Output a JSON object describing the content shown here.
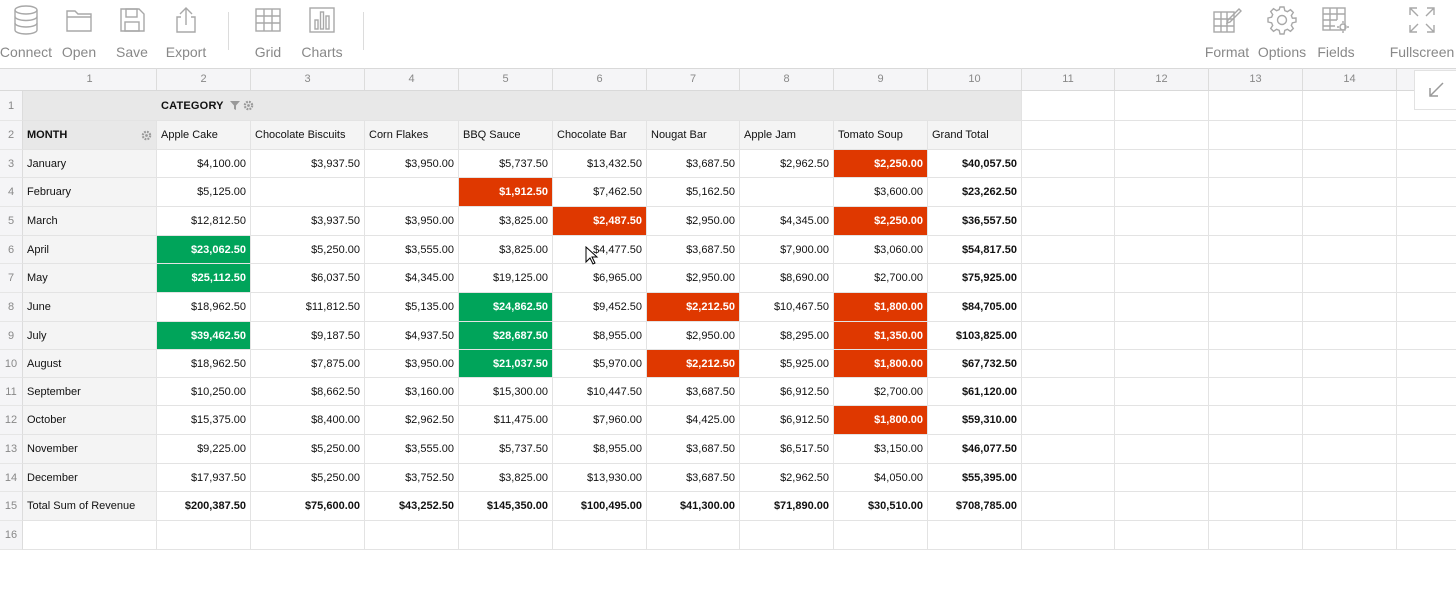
{
  "toolbar": {
    "left": [
      {
        "id": "connect",
        "label": "Connect",
        "icon": "database-icon"
      },
      {
        "id": "open",
        "label": "Open",
        "icon": "folder-icon"
      },
      {
        "id": "save",
        "label": "Save",
        "icon": "save-icon"
      },
      {
        "id": "export",
        "label": "Export",
        "icon": "export-icon"
      },
      {
        "id": "grid",
        "label": "Grid",
        "icon": "grid-icon"
      },
      {
        "id": "charts",
        "label": "Charts",
        "icon": "charts-icon"
      }
    ],
    "right": [
      {
        "id": "format",
        "label": "Format",
        "icon": "format-icon"
      },
      {
        "id": "options",
        "label": "Options",
        "icon": "gear-icon"
      },
      {
        "id": "fields",
        "label": "Fields",
        "icon": "fields-icon"
      },
      {
        "id": "fullscreen",
        "label": "Fullscreen",
        "icon": "fullscreen-icon"
      }
    ]
  },
  "column_numbers": [
    "1",
    "2",
    "3",
    "4",
    "5",
    "6",
    "7",
    "8",
    "9",
    "10",
    "11",
    "12",
    "13",
    "14"
  ],
  "row_numbers": [
    "1",
    "2",
    "3",
    "4",
    "5",
    "6",
    "7",
    "8",
    "9",
    "10",
    "11",
    "12",
    "13",
    "14",
    "15",
    "16"
  ],
  "pivot": {
    "column_field": "CATEGORY",
    "row_field": "MONTH",
    "columns": [
      "Apple Cake",
      "Chocolate Biscuits",
      "Corn Flakes",
      "BBQ Sauce",
      "Chocolate Bar",
      "Nougat Bar",
      "Apple Jam",
      "Tomato Soup",
      "Grand Total"
    ],
    "rows": [
      {
        "label": "January",
        "values": [
          "$4,100.00",
          "$3,937.50",
          "$3,950.00",
          "$5,737.50",
          "$13,432.50",
          "$3,687.50",
          "$2,962.50",
          "$2,250.00",
          "$40,057.50"
        ],
        "hl": [
          "",
          "",
          "",
          "",
          "",
          "",
          "",
          "red",
          ""
        ]
      },
      {
        "label": "February",
        "values": [
          "$5,125.00",
          "",
          "",
          "$1,912.50",
          "$7,462.50",
          "$5,162.50",
          "",
          "$3,600.00",
          "$23,262.50"
        ],
        "hl": [
          "",
          "",
          "",
          "red",
          "",
          "",
          "",
          "",
          ""
        ]
      },
      {
        "label": "March",
        "values": [
          "$12,812.50",
          "$3,937.50",
          "$3,950.00",
          "$3,825.00",
          "$2,487.50",
          "$2,950.00",
          "$4,345.00",
          "$2,250.00",
          "$36,557.50"
        ],
        "hl": [
          "",
          "",
          "",
          "",
          "red",
          "",
          "",
          "red",
          ""
        ]
      },
      {
        "label": "April",
        "values": [
          "$23,062.50",
          "$5,250.00",
          "$3,555.00",
          "$3,825.00",
          "$4,477.50",
          "$3,687.50",
          "$7,900.00",
          "$3,060.00",
          "$54,817.50"
        ],
        "hl": [
          "green",
          "",
          "",
          "",
          "",
          "",
          "",
          "",
          ""
        ]
      },
      {
        "label": "May",
        "values": [
          "$25,112.50",
          "$6,037.50",
          "$4,345.00",
          "$19,125.00",
          "$6,965.00",
          "$2,950.00",
          "$8,690.00",
          "$2,700.00",
          "$75,925.00"
        ],
        "hl": [
          "green",
          "",
          "",
          "",
          "",
          "",
          "",
          "",
          ""
        ]
      },
      {
        "label": "June",
        "values": [
          "$18,962.50",
          "$11,812.50",
          "$5,135.00",
          "$24,862.50",
          "$9,452.50",
          "$2,212.50",
          "$10,467.50",
          "$1,800.00",
          "$84,705.00"
        ],
        "hl": [
          "",
          "",
          "",
          "green",
          "",
          "red",
          "",
          "red",
          ""
        ]
      },
      {
        "label": "July",
        "values": [
          "$39,462.50",
          "$9,187.50",
          "$4,937.50",
          "$28,687.50",
          "$8,955.00",
          "$2,950.00",
          "$8,295.00",
          "$1,350.00",
          "$103,825.00"
        ],
        "hl": [
          "green",
          "",
          "",
          "green",
          "",
          "",
          "",
          "red",
          ""
        ]
      },
      {
        "label": "August",
        "values": [
          "$18,962.50",
          "$7,875.00",
          "$3,950.00",
          "$21,037.50",
          "$5,970.00",
          "$2,212.50",
          "$5,925.00",
          "$1,800.00",
          "$67,732.50"
        ],
        "hl": [
          "",
          "",
          "",
          "green",
          "",
          "red",
          "",
          "red",
          ""
        ]
      },
      {
        "label": "September",
        "values": [
          "$10,250.00",
          "$8,662.50",
          "$3,160.00",
          "$15,300.00",
          "$10,447.50",
          "$3,687.50",
          "$6,912.50",
          "$2,700.00",
          "$61,120.00"
        ],
        "hl": [
          "",
          "",
          "",
          "",
          "",
          "",
          "",
          "",
          ""
        ]
      },
      {
        "label": "October",
        "values": [
          "$15,375.00",
          "$8,400.00",
          "$2,962.50",
          "$11,475.00",
          "$7,960.00",
          "$4,425.00",
          "$6,912.50",
          "$1,800.00",
          "$59,310.00"
        ],
        "hl": [
          "",
          "",
          "",
          "",
          "",
          "",
          "",
          "red",
          ""
        ]
      },
      {
        "label": "November",
        "values": [
          "$9,225.00",
          "$5,250.00",
          "$3,555.00",
          "$5,737.50",
          "$8,955.00",
          "$3,687.50",
          "$6,517.50",
          "$3,150.00",
          "$46,077.50"
        ],
        "hl": [
          "",
          "",
          "",
          "",
          "",
          "",
          "",
          "",
          ""
        ]
      },
      {
        "label": "December",
        "values": [
          "$17,937.50",
          "$5,250.00",
          "$3,752.50",
          "$3,825.00",
          "$13,930.00",
          "$3,687.50",
          "$2,962.50",
          "$4,050.00",
          "$55,395.00"
        ],
        "hl": [
          "",
          "",
          "",
          "",
          "",
          "",
          "",
          "",
          ""
        ]
      }
    ],
    "total_row": {
      "label": "Total Sum of Revenue",
      "values": [
        "$200,387.50",
        "$75,600.00",
        "$43,252.50",
        "$145,350.00",
        "$100,495.00",
        "$41,300.00",
        "$71,890.00",
        "$30,510.00",
        "$708,785.00"
      ]
    }
  },
  "colors": {
    "green": "#00a45a",
    "red": "#df3800"
  }
}
